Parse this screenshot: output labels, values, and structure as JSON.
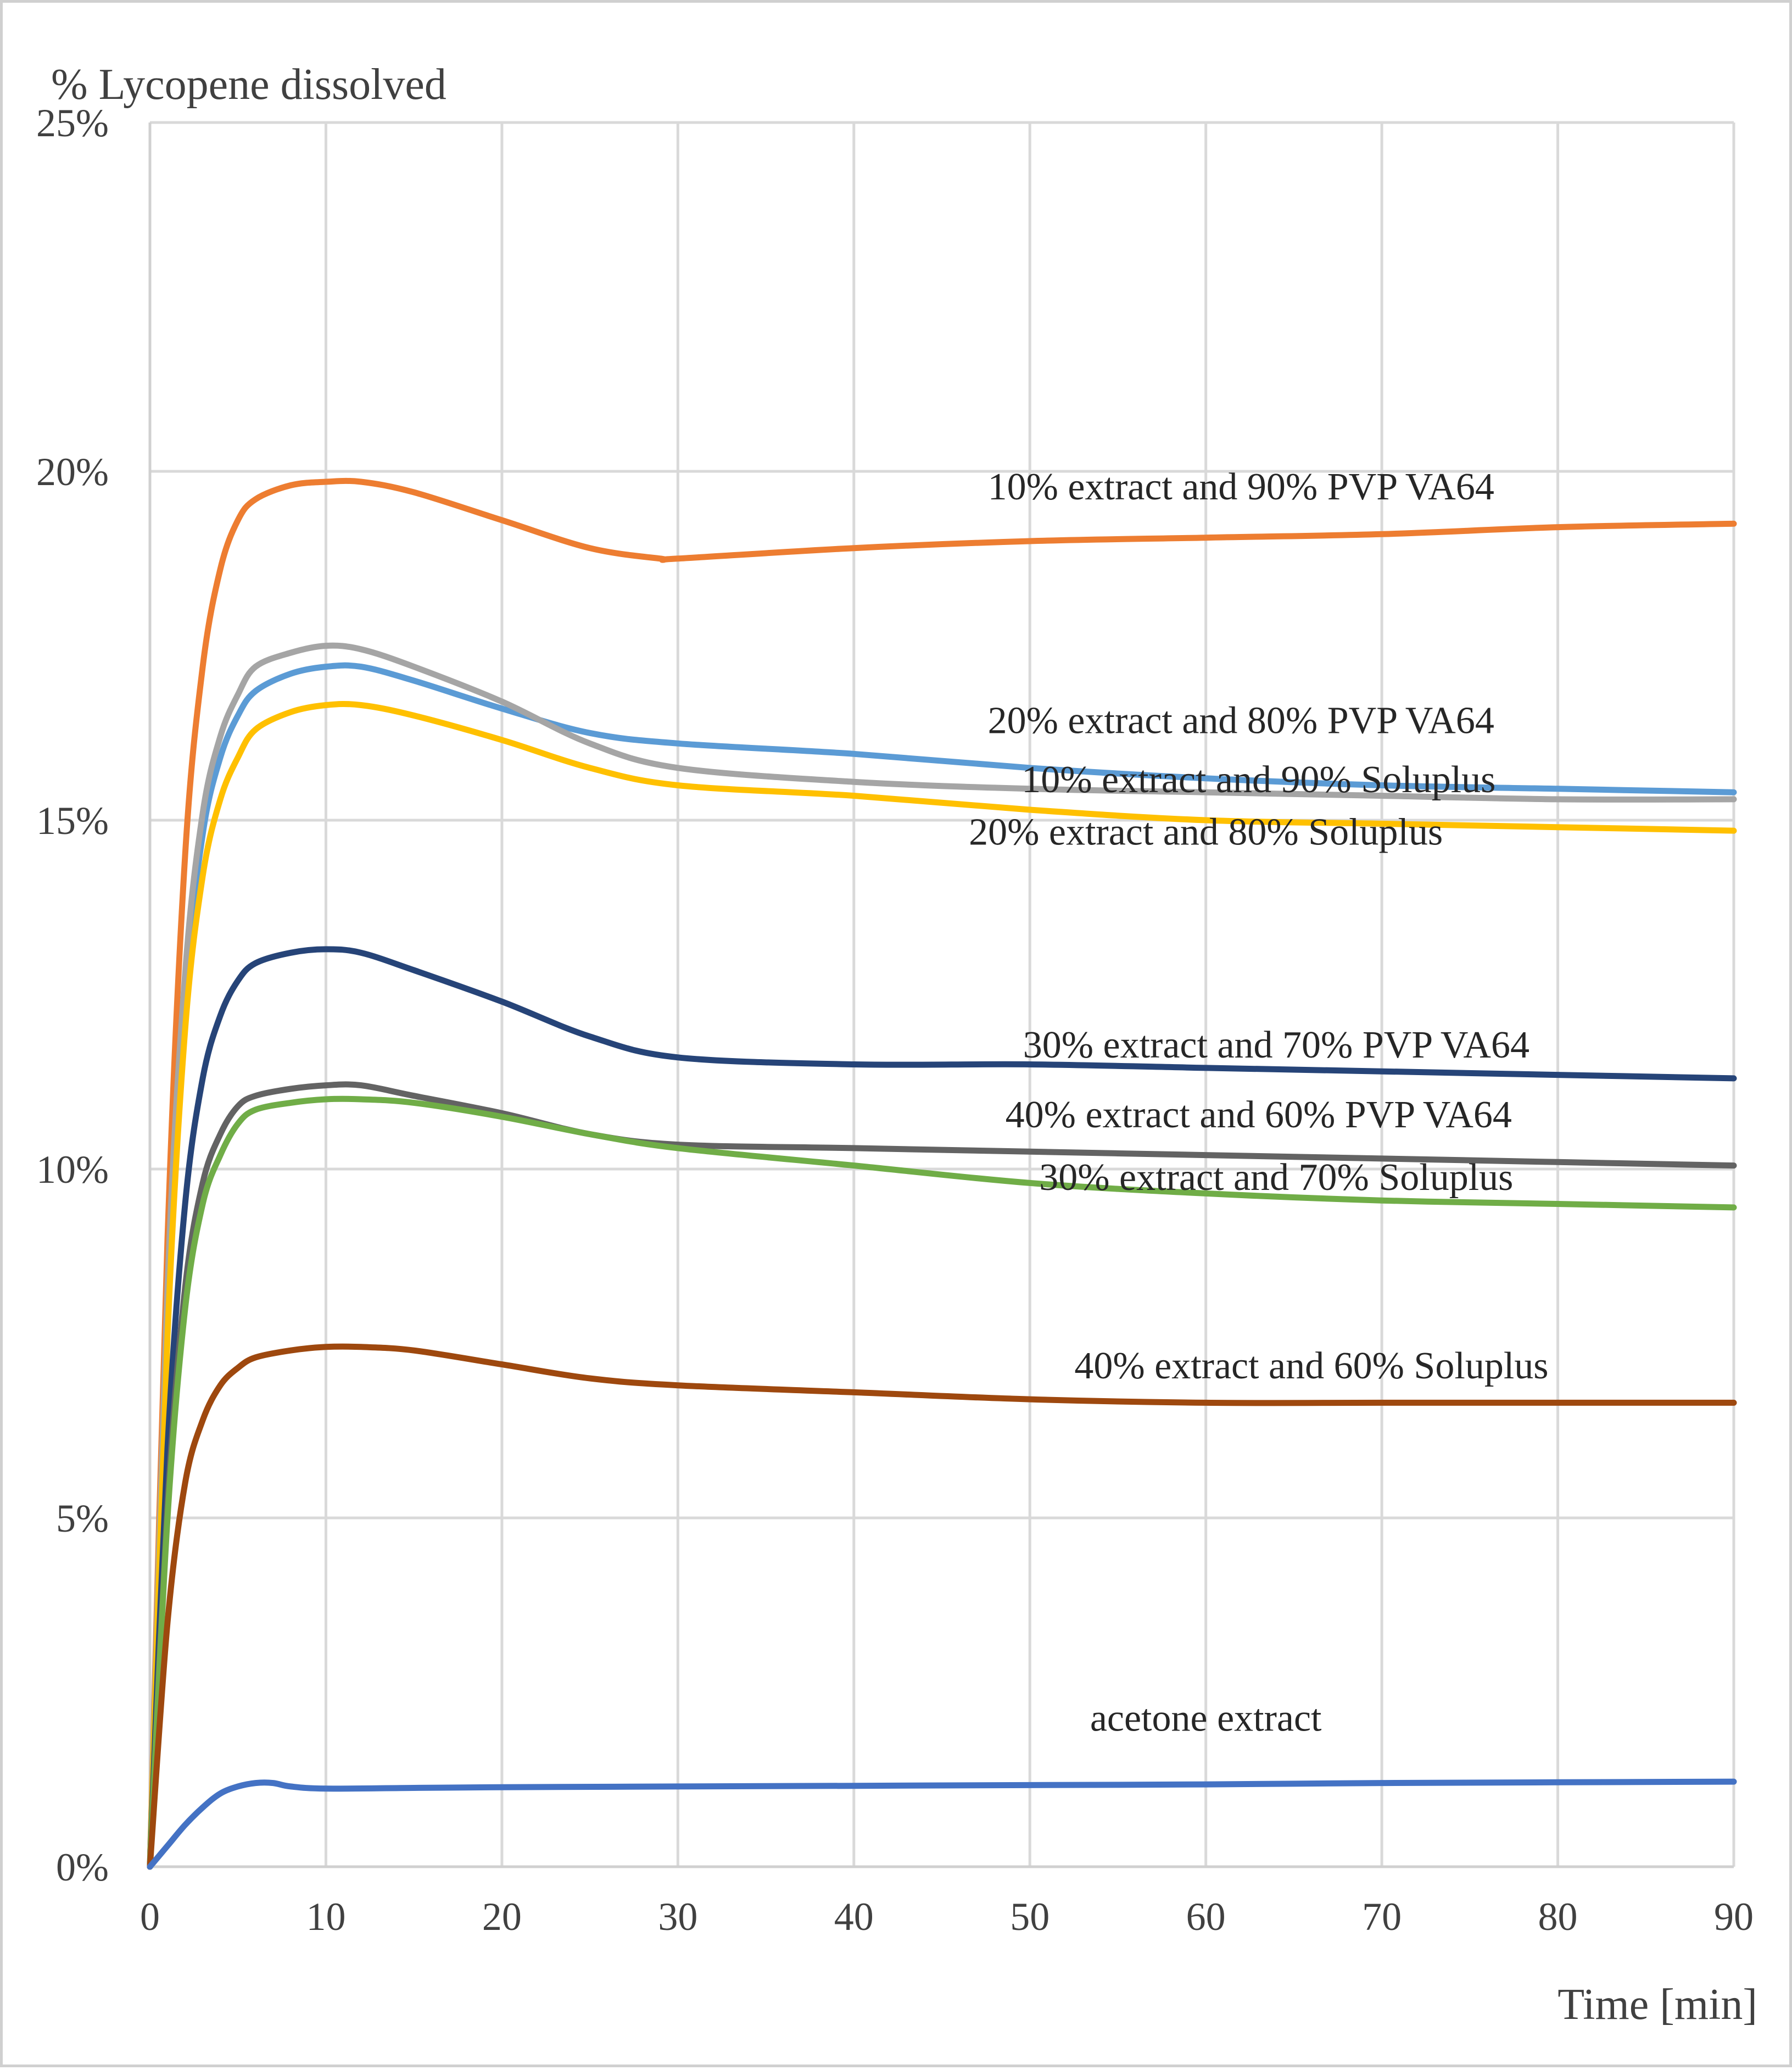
{
  "chart_data": {
    "type": "line",
    "ylabel": "% Lycopene dissolved",
    "xlabel": "Time [min]",
    "xlim": [
      0,
      90
    ],
    "ylim": [
      0,
      25
    ],
    "x_ticks": [
      0,
      10,
      20,
      30,
      40,
      50,
      60,
      70,
      80,
      90
    ],
    "y_ticks": [
      0,
      5,
      10,
      15,
      20,
      25
    ],
    "y_tick_labels": [
      "0%",
      "5%",
      "10%",
      "15%",
      "20%",
      "25%"
    ],
    "grid": true,
    "series": [
      {
        "name": "10% extract and 90% PVP VA64",
        "color": "#ED7D31",
        "points": [
          [
            0,
            0
          ],
          [
            1,
            9
          ],
          [
            2,
            14.5
          ],
          [
            3,
            17.2
          ],
          [
            4,
            18.6
          ],
          [
            5,
            19.3
          ],
          [
            6,
            19.6
          ],
          [
            8,
            19.8
          ],
          [
            10,
            19.85
          ],
          [
            12,
            19.85
          ],
          [
            15,
            19.7
          ],
          [
            20,
            19.3
          ],
          [
            25,
            18.9
          ],
          [
            29,
            18.75
          ],
          [
            30,
            18.75
          ],
          [
            40,
            18.9
          ],
          [
            50,
            19.0
          ],
          [
            60,
            19.05
          ],
          [
            70,
            19.1
          ],
          [
            80,
            19.2
          ],
          [
            90,
            19.25
          ]
        ],
        "label_at": [
          62,
          19.6
        ]
      },
      {
        "name": "20% extract and 80% PVP VA64",
        "color": "#5B9BD5",
        "points": [
          [
            0,
            0
          ],
          [
            1,
            8
          ],
          [
            2,
            12.5
          ],
          [
            3,
            14.8
          ],
          [
            4,
            15.9
          ],
          [
            5,
            16.5
          ],
          [
            6,
            16.85
          ],
          [
            8,
            17.1
          ],
          [
            10,
            17.2
          ],
          [
            12,
            17.2
          ],
          [
            15,
            17.0
          ],
          [
            20,
            16.6
          ],
          [
            25,
            16.25
          ],
          [
            30,
            16.1
          ],
          [
            40,
            15.95
          ],
          [
            50,
            15.75
          ],
          [
            60,
            15.6
          ],
          [
            70,
            15.5
          ],
          [
            80,
            15.45
          ],
          [
            90,
            15.4
          ]
        ],
        "label_at": [
          62,
          16.25
        ]
      },
      {
        "name": "10% extract and 90% Soluplus",
        "color": "#A5A5A5",
        "points": [
          [
            0,
            0
          ],
          [
            1,
            8.3
          ],
          [
            2,
            12.8
          ],
          [
            3,
            15.1
          ],
          [
            4,
            16.2
          ],
          [
            5,
            16.8
          ],
          [
            6,
            17.2
          ],
          [
            8,
            17.4
          ],
          [
            10,
            17.5
          ],
          [
            12,
            17.45
          ],
          [
            15,
            17.2
          ],
          [
            20,
            16.7
          ],
          [
            25,
            16.1
          ],
          [
            30,
            15.75
          ],
          [
            40,
            15.55
          ],
          [
            50,
            15.45
          ],
          [
            60,
            15.4
          ],
          [
            70,
            15.35
          ],
          [
            80,
            15.3
          ],
          [
            90,
            15.3
          ]
        ],
        "label_at": [
          63,
          15.4
        ]
      },
      {
        "name": "20% extract and 80% Soluplus",
        "color": "#FFC000",
        "points": [
          [
            0,
            0
          ],
          [
            1,
            7.6
          ],
          [
            2,
            12
          ],
          [
            3,
            14.2
          ],
          [
            4,
            15.3
          ],
          [
            5,
            15.9
          ],
          [
            6,
            16.3
          ],
          [
            8,
            16.55
          ],
          [
            10,
            16.65
          ],
          [
            12,
            16.65
          ],
          [
            15,
            16.5
          ],
          [
            20,
            16.15
          ],
          [
            25,
            15.75
          ],
          [
            30,
            15.5
          ],
          [
            40,
            15.35
          ],
          [
            50,
            15.15
          ],
          [
            60,
            15.0
          ],
          [
            70,
            14.95
          ],
          [
            80,
            14.9
          ],
          [
            90,
            14.85
          ]
        ],
        "label_at": [
          60,
          14.65
        ]
      },
      {
        "name": "30% extract and 70% PVP VA64",
        "color": "#264478",
        "points": [
          [
            0,
            0
          ],
          [
            1,
            6
          ],
          [
            2,
            9.5
          ],
          [
            3,
            11.3
          ],
          [
            4,
            12.2
          ],
          [
            5,
            12.7
          ],
          [
            6,
            12.95
          ],
          [
            8,
            13.1
          ],
          [
            10,
            13.15
          ],
          [
            12,
            13.1
          ],
          [
            15,
            12.85
          ],
          [
            20,
            12.4
          ],
          [
            25,
            11.9
          ],
          [
            30,
            11.6
          ],
          [
            40,
            11.5
          ],
          [
            50,
            11.5
          ],
          [
            60,
            11.45
          ],
          [
            70,
            11.4
          ],
          [
            80,
            11.35
          ],
          [
            90,
            11.3
          ]
        ],
        "label_at": [
          64,
          11.6
        ]
      },
      {
        "name": "40% extract and 60% PVP VA64",
        "color": "#636363",
        "points": [
          [
            0,
            0
          ],
          [
            1,
            5.2
          ],
          [
            2,
            8.3
          ],
          [
            3,
            9.8
          ],
          [
            4,
            10.5
          ],
          [
            5,
            10.9
          ],
          [
            6,
            11.05
          ],
          [
            8,
            11.15
          ],
          [
            10,
            11.2
          ],
          [
            12,
            11.2
          ],
          [
            15,
            11.05
          ],
          [
            20,
            10.8
          ],
          [
            25,
            10.5
          ],
          [
            30,
            10.35
          ],
          [
            40,
            10.3
          ],
          [
            50,
            10.25
          ],
          [
            60,
            10.2
          ],
          [
            70,
            10.15
          ],
          [
            80,
            10.1
          ],
          [
            90,
            10.05
          ]
        ],
        "label_at": [
          63,
          10.6
        ]
      },
      {
        "name": "30% extract and 70% Soluplus",
        "color": "#70AD47",
        "points": [
          [
            0,
            0
          ],
          [
            1,
            5
          ],
          [
            2,
            8
          ],
          [
            3,
            9.5
          ],
          [
            4,
            10.2
          ],
          [
            5,
            10.65
          ],
          [
            6,
            10.85
          ],
          [
            8,
            10.95
          ],
          [
            10,
            11.0
          ],
          [
            12,
            11.0
          ],
          [
            15,
            10.95
          ],
          [
            20,
            10.75
          ],
          [
            25,
            10.5
          ],
          [
            30,
            10.3
          ],
          [
            40,
            10.05
          ],
          [
            50,
            9.8
          ],
          [
            60,
            9.65
          ],
          [
            70,
            9.55
          ],
          [
            80,
            9.5
          ],
          [
            90,
            9.45
          ]
        ],
        "label_at": [
          64,
          9.7
        ]
      },
      {
        "name": "40% extract and 60% Soluplus",
        "color": "#9E480E",
        "points": [
          [
            0,
            0
          ],
          [
            1,
            3.5
          ],
          [
            2,
            5.5
          ],
          [
            3,
            6.4
          ],
          [
            4,
            6.9
          ],
          [
            5,
            7.15
          ],
          [
            6,
            7.3
          ],
          [
            8,
            7.4
          ],
          [
            10,
            7.45
          ],
          [
            12,
            7.45
          ],
          [
            15,
            7.4
          ],
          [
            20,
            7.2
          ],
          [
            25,
            7.0
          ],
          [
            30,
            6.9
          ],
          [
            40,
            6.8
          ],
          [
            50,
            6.7
          ],
          [
            60,
            6.65
          ],
          [
            70,
            6.65
          ],
          [
            80,
            6.65
          ],
          [
            90,
            6.65
          ]
        ],
        "label_at": [
          66,
          7.0
        ]
      },
      {
        "name": "acetone extract",
        "color": "#4472C4",
        "points": [
          [
            0,
            0
          ],
          [
            1,
            0.3
          ],
          [
            2,
            0.6
          ],
          [
            3,
            0.85
          ],
          [
            4,
            1.05
          ],
          [
            5,
            1.15
          ],
          [
            6,
            1.2
          ],
          [
            7,
            1.2
          ],
          [
            8,
            1.15
          ],
          [
            10,
            1.12
          ],
          [
            15,
            1.13
          ],
          [
            20,
            1.14
          ],
          [
            30,
            1.15
          ],
          [
            40,
            1.16
          ],
          [
            50,
            1.17
          ],
          [
            60,
            1.18
          ],
          [
            70,
            1.2
          ],
          [
            80,
            1.21
          ],
          [
            90,
            1.22
          ]
        ],
        "label_at": [
          60,
          1.95
        ]
      }
    ]
  }
}
